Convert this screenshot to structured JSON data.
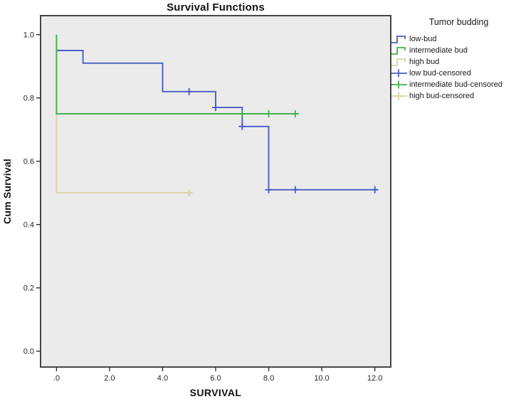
{
  "colors": {
    "plot_bg": "#ebebeb",
    "frame": "#454545",
    "tick": "#1f1f1f",
    "tick_label": "#262626",
    "low_bud": "#4a5ec4",
    "intermediate_bud": "#45ae51",
    "high_bud": "#d9d2a2"
  },
  "legend": {
    "title": "Tumor budding",
    "entries": [
      {
        "label": "low-bud",
        "color": "#4a5ec4",
        "symbol": "step"
      },
      {
        "label": "intermediate bud",
        "color": "#45ae51",
        "symbol": "step"
      },
      {
        "label": "high bud",
        "color": "#d9d2a2",
        "symbol": "step"
      },
      {
        "label": "low bud-censored",
        "color": "#4a5ec4",
        "symbol": "plus"
      },
      {
        "label": "intermediate bud-censored",
        "color": "#45ae51",
        "symbol": "plus"
      },
      {
        "label": "high bud-censored",
        "color": "#d9d2a2",
        "symbol": "plus"
      }
    ]
  },
  "chart_data": {
    "type": "line",
    "subtype": "kaplan-meier-step-survival",
    "title": "Survival Functions",
    "xlabel": "SURVIVAL",
    "ylabel": "Cum Survival",
    "xlim": [
      -0.6,
      12.6
    ],
    "ylim": [
      -0.05,
      1.06
    ],
    "x_ticks": [
      0,
      2,
      4,
      6,
      8,
      10,
      12
    ],
    "x_tick_labels": [
      ".0",
      "2.0",
      "4.0",
      "6.0",
      "8.0",
      "10.0",
      "12.0"
    ],
    "y_ticks": [
      1.0,
      0.8,
      0.6,
      0.4,
      0.2,
      0.0
    ],
    "y_tick_labels": [
      "1.0",
      "0.8",
      "0.6",
      "0.4",
      "0.2",
      "0.0"
    ],
    "grid": false,
    "legend_position": "right",
    "draw_order": [
      0,
      2,
      1
    ],
    "series": [
      {
        "name": "low-bud",
        "color": "#4a5ec4",
        "points": [
          [
            0,
            0.95
          ],
          [
            1,
            0.95
          ],
          [
            1,
            0.91
          ],
          [
            4,
            0.91
          ],
          [
            4,
            0.82
          ],
          [
            6,
            0.82
          ],
          [
            6,
            0.77
          ],
          [
            7,
            0.77
          ],
          [
            7,
            0.71
          ],
          [
            8,
            0.71
          ],
          [
            8,
            0.51
          ],
          [
            12.1,
            0.51
          ]
        ],
        "censored": [
          [
            5,
            0.82
          ],
          [
            6,
            0.77
          ],
          [
            7,
            0.71
          ],
          [
            8,
            0.51
          ],
          [
            9,
            0.51
          ],
          [
            12,
            0.51
          ]
        ]
      },
      {
        "name": "intermediate bud",
        "color": "#45ae51",
        "points": [
          [
            0,
            1.0
          ],
          [
            0,
            0.75
          ],
          [
            9,
            0.75
          ]
        ],
        "censored": [
          [
            7,
            0.75
          ],
          [
            8,
            0.75
          ],
          [
            9,
            0.75
          ]
        ]
      },
      {
        "name": "high bud",
        "color": "#d9d2a2",
        "points": [
          [
            0,
            1.0
          ],
          [
            0,
            0.5
          ],
          [
            5,
            0.5
          ]
        ],
        "censored": [
          [
            5,
            0.5
          ]
        ]
      }
    ]
  }
}
